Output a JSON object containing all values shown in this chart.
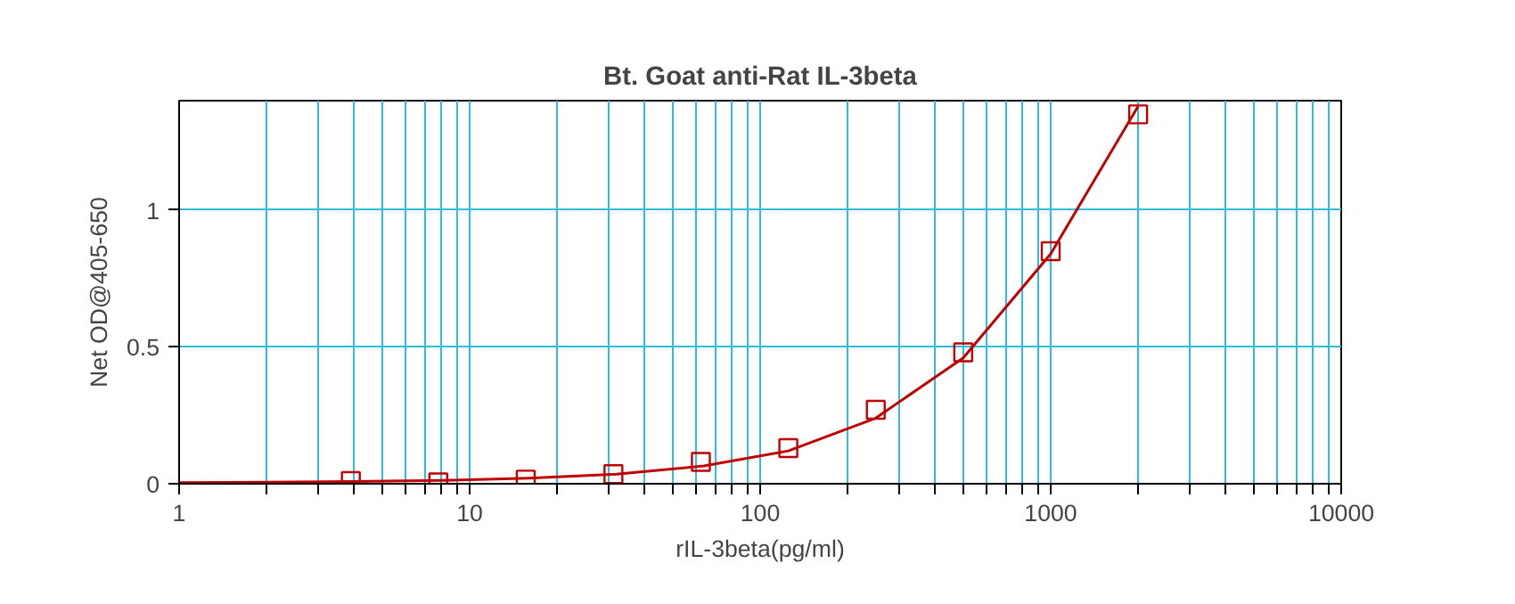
{
  "chart_data": {
    "type": "scatter",
    "title": "Bt. Goat anti-Rat IL-3beta",
    "xlabel": "rIL-3beta(pg/ml)",
    "ylabel": "Net OD@405-650",
    "log": "x",
    "grid": true,
    "marker": "square",
    "xlim": [
      1,
      10000
    ],
    "ylim": [
      0,
      1.4
    ],
    "xticks": [
      1,
      {
        "value": 2,
        "label": null
      },
      {
        "value": 3,
        "label": null
      },
      {
        "value": 4,
        "label": null
      },
      {
        "value": 5,
        "label": null
      },
      {
        "value": 6,
        "label": null
      },
      {
        "value": 7,
        "label": null
      },
      {
        "value": 8,
        "label": null
      },
      {
        "value": 9,
        "label": null
      },
      10,
      {
        "value": 20,
        "label": null
      },
      {
        "value": 30,
        "label": null
      },
      {
        "value": 40,
        "label": null
      },
      {
        "value": 50,
        "label": null
      },
      {
        "value": 60,
        "label": null
      },
      {
        "value": 70,
        "label": null
      },
      {
        "value": 80,
        "label": null
      },
      {
        "value": 90,
        "label": null
      },
      100,
      {
        "value": 200,
        "label": null
      },
      {
        "value": 300,
        "label": null
      },
      {
        "value": 400,
        "label": null
      },
      {
        "value": 500,
        "label": null
      },
      {
        "value": 600,
        "label": null
      },
      {
        "value": 700,
        "label": null
      },
      {
        "value": 800,
        "label": null
      },
      {
        "value": 900,
        "label": null
      },
      1000,
      {
        "value": 2000,
        "label": null
      },
      {
        "value": 3000,
        "label": null
      },
      {
        "value": 4000,
        "label": null
      },
      {
        "value": 5000,
        "label": null
      },
      {
        "value": 6000,
        "label": null
      },
      {
        "value": 7000,
        "label": null
      },
      {
        "value": 8000,
        "label": null
      },
      {
        "value": 9000,
        "label": null
      },
      10000
    ],
    "yticks": [
      0,
      0.5,
      1
    ],
    "series": [
      {
        "type": "line",
        "color": "#c00000",
        "marker": "none",
        "x": [
          1,
          2,
          4,
          8,
          16,
          32,
          64,
          125,
          250,
          500,
          1000,
          2000
        ],
        "values": [
          0.004,
          0.006,
          0.008,
          0.012,
          0.02,
          0.035,
          0.065,
          0.12,
          0.24,
          0.46,
          0.84,
          1.38
        ]
      },
      {
        "color": "#c00000",
        "x": [
          3.9,
          7.8,
          15.6,
          31.25,
          62.5,
          125,
          250,
          500,
          1000,
          2000
        ],
        "values": [
          0.01,
          0.005,
          0.015,
          0.035,
          0.08,
          0.13,
          0.27,
          0.48,
          0.85,
          1.35
        ]
      }
    ]
  }
}
